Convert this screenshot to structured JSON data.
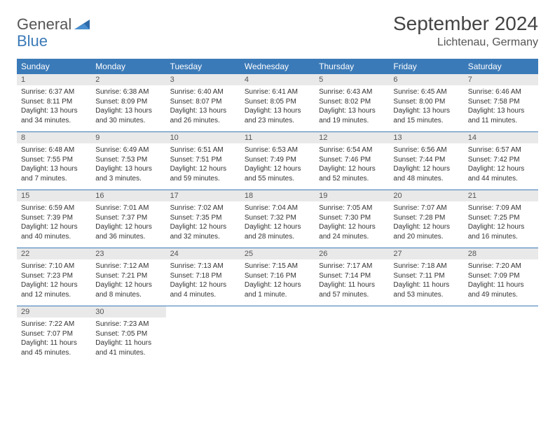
{
  "logo": {
    "general": "General",
    "blue": "Blue"
  },
  "title": "September 2024",
  "location": "Lichtenau, Germany",
  "colors": {
    "header_bg": "#3b7ab8",
    "header_text": "#ffffff",
    "daynum_bg": "#e9e9e9",
    "border": "#3b7ab8",
    "text": "#333333"
  },
  "typography": {
    "title_fontsize": 28,
    "location_fontsize": 16,
    "dayheader_fontsize": 12,
    "daynum_fontsize": 11,
    "info_fontsize": 10
  },
  "day_names": [
    "Sunday",
    "Monday",
    "Tuesday",
    "Wednesday",
    "Thursday",
    "Friday",
    "Saturday"
  ],
  "weeks": [
    [
      {
        "n": "1",
        "sr": "Sunrise: 6:37 AM",
        "ss": "Sunset: 8:11 PM",
        "dl": "Daylight: 13 hours and 34 minutes."
      },
      {
        "n": "2",
        "sr": "Sunrise: 6:38 AM",
        "ss": "Sunset: 8:09 PM",
        "dl": "Daylight: 13 hours and 30 minutes."
      },
      {
        "n": "3",
        "sr": "Sunrise: 6:40 AM",
        "ss": "Sunset: 8:07 PM",
        "dl": "Daylight: 13 hours and 26 minutes."
      },
      {
        "n": "4",
        "sr": "Sunrise: 6:41 AM",
        "ss": "Sunset: 8:05 PM",
        "dl": "Daylight: 13 hours and 23 minutes."
      },
      {
        "n": "5",
        "sr": "Sunrise: 6:43 AM",
        "ss": "Sunset: 8:02 PM",
        "dl": "Daylight: 13 hours and 19 minutes."
      },
      {
        "n": "6",
        "sr": "Sunrise: 6:45 AM",
        "ss": "Sunset: 8:00 PM",
        "dl": "Daylight: 13 hours and 15 minutes."
      },
      {
        "n": "7",
        "sr": "Sunrise: 6:46 AM",
        "ss": "Sunset: 7:58 PM",
        "dl": "Daylight: 13 hours and 11 minutes."
      }
    ],
    [
      {
        "n": "8",
        "sr": "Sunrise: 6:48 AM",
        "ss": "Sunset: 7:55 PM",
        "dl": "Daylight: 13 hours and 7 minutes."
      },
      {
        "n": "9",
        "sr": "Sunrise: 6:49 AM",
        "ss": "Sunset: 7:53 PM",
        "dl": "Daylight: 13 hours and 3 minutes."
      },
      {
        "n": "10",
        "sr": "Sunrise: 6:51 AM",
        "ss": "Sunset: 7:51 PM",
        "dl": "Daylight: 12 hours and 59 minutes."
      },
      {
        "n": "11",
        "sr": "Sunrise: 6:53 AM",
        "ss": "Sunset: 7:49 PM",
        "dl": "Daylight: 12 hours and 55 minutes."
      },
      {
        "n": "12",
        "sr": "Sunrise: 6:54 AM",
        "ss": "Sunset: 7:46 PM",
        "dl": "Daylight: 12 hours and 52 minutes."
      },
      {
        "n": "13",
        "sr": "Sunrise: 6:56 AM",
        "ss": "Sunset: 7:44 PM",
        "dl": "Daylight: 12 hours and 48 minutes."
      },
      {
        "n": "14",
        "sr": "Sunrise: 6:57 AM",
        "ss": "Sunset: 7:42 PM",
        "dl": "Daylight: 12 hours and 44 minutes."
      }
    ],
    [
      {
        "n": "15",
        "sr": "Sunrise: 6:59 AM",
        "ss": "Sunset: 7:39 PM",
        "dl": "Daylight: 12 hours and 40 minutes."
      },
      {
        "n": "16",
        "sr": "Sunrise: 7:01 AM",
        "ss": "Sunset: 7:37 PM",
        "dl": "Daylight: 12 hours and 36 minutes."
      },
      {
        "n": "17",
        "sr": "Sunrise: 7:02 AM",
        "ss": "Sunset: 7:35 PM",
        "dl": "Daylight: 12 hours and 32 minutes."
      },
      {
        "n": "18",
        "sr": "Sunrise: 7:04 AM",
        "ss": "Sunset: 7:32 PM",
        "dl": "Daylight: 12 hours and 28 minutes."
      },
      {
        "n": "19",
        "sr": "Sunrise: 7:05 AM",
        "ss": "Sunset: 7:30 PM",
        "dl": "Daylight: 12 hours and 24 minutes."
      },
      {
        "n": "20",
        "sr": "Sunrise: 7:07 AM",
        "ss": "Sunset: 7:28 PM",
        "dl": "Daylight: 12 hours and 20 minutes."
      },
      {
        "n": "21",
        "sr": "Sunrise: 7:09 AM",
        "ss": "Sunset: 7:25 PM",
        "dl": "Daylight: 12 hours and 16 minutes."
      }
    ],
    [
      {
        "n": "22",
        "sr": "Sunrise: 7:10 AM",
        "ss": "Sunset: 7:23 PM",
        "dl": "Daylight: 12 hours and 12 minutes."
      },
      {
        "n": "23",
        "sr": "Sunrise: 7:12 AM",
        "ss": "Sunset: 7:21 PM",
        "dl": "Daylight: 12 hours and 8 minutes."
      },
      {
        "n": "24",
        "sr": "Sunrise: 7:13 AM",
        "ss": "Sunset: 7:18 PM",
        "dl": "Daylight: 12 hours and 4 minutes."
      },
      {
        "n": "25",
        "sr": "Sunrise: 7:15 AM",
        "ss": "Sunset: 7:16 PM",
        "dl": "Daylight: 12 hours and 1 minute."
      },
      {
        "n": "26",
        "sr": "Sunrise: 7:17 AM",
        "ss": "Sunset: 7:14 PM",
        "dl": "Daylight: 11 hours and 57 minutes."
      },
      {
        "n": "27",
        "sr": "Sunrise: 7:18 AM",
        "ss": "Sunset: 7:11 PM",
        "dl": "Daylight: 11 hours and 53 minutes."
      },
      {
        "n": "28",
        "sr": "Sunrise: 7:20 AM",
        "ss": "Sunset: 7:09 PM",
        "dl": "Daylight: 11 hours and 49 minutes."
      }
    ],
    [
      {
        "n": "29",
        "sr": "Sunrise: 7:22 AM",
        "ss": "Sunset: 7:07 PM",
        "dl": "Daylight: 11 hours and 45 minutes."
      },
      {
        "n": "30",
        "sr": "Sunrise: 7:23 AM",
        "ss": "Sunset: 7:05 PM",
        "dl": "Daylight: 11 hours and 41 minutes."
      },
      null,
      null,
      null,
      null,
      null
    ]
  ]
}
